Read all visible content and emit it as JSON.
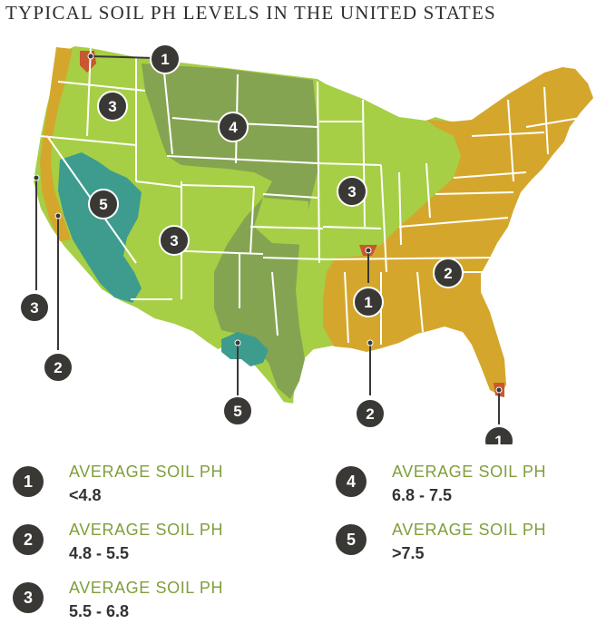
{
  "title": "TYPICAL SOIL PH LEVELS IN THE UNITED STATES",
  "colors": {
    "ph_1": "#c9572f",
    "ph_2": "#d4a72c",
    "ph_3": "#a6cf45",
    "ph_4": "#85a452",
    "ph_5": "#3d9c8e",
    "label_green": "#7f9f3c",
    "badge": "#3a3835"
  },
  "map_markers": [
    "1",
    "3",
    "4",
    "5",
    "3",
    "3",
    "2",
    "1",
    "3",
    "2",
    "5",
    "2",
    "1"
  ],
  "legend": [
    {
      "number": "1",
      "label": "AVERAGE SOIL PH",
      "range": "<4.8"
    },
    {
      "number": "2",
      "label": "AVERAGE SOIL PH",
      "range": "4.8 - 5.5"
    },
    {
      "number": "3",
      "label": "AVERAGE SOIL PH",
      "range": "5.5 - 6.8"
    },
    {
      "number": "4",
      "label": "AVERAGE SOIL PH",
      "range": "6.8 - 7.5"
    },
    {
      "number": "5",
      "label": "AVERAGE SOIL PH",
      "range": ">7.5"
    }
  ]
}
